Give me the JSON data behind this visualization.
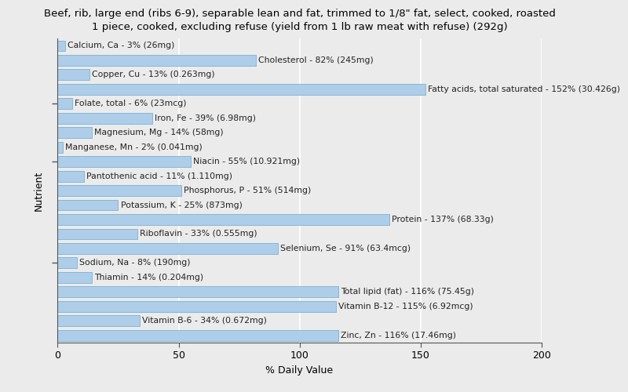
{
  "title": "Beef, rib, large end (ribs 6-9), separable lean and fat, trimmed to 1/8\" fat, select, cooked, roasted\n1 piece, cooked, excluding refuse (yield from 1 lb raw meat with refuse) (292g)",
  "xlabel": "% Daily Value",
  "ylabel": "Nutrient",
  "xlim": [
    0,
    200
  ],
  "xticks": [
    0,
    50,
    100,
    150,
    200
  ],
  "nutrients": [
    "Calcium, Ca - 3% (26mg)",
    "Cholesterol - 82% (245mg)",
    "Copper, Cu - 13% (0.263mg)",
    "Fatty acids, total saturated - 152% (30.426g)",
    "Folate, total - 6% (23mcg)",
    "Iron, Fe - 39% (6.98mg)",
    "Magnesium, Mg - 14% (58mg)",
    "Manganese, Mn - 2% (0.041mg)",
    "Niacin - 55% (10.921mg)",
    "Pantothenic acid - 11% (1.110mg)",
    "Phosphorus, P - 51% (514mg)",
    "Potassium, K - 25% (873mg)",
    "Protein - 137% (68.33g)",
    "Riboflavin - 33% (0.555mg)",
    "Selenium, Se - 91% (63.4mcg)",
    "Sodium, Na - 8% (190mg)",
    "Thiamin - 14% (0.204mg)",
    "Total lipid (fat) - 116% (75.45g)",
    "Vitamin B-12 - 115% (6.92mcg)",
    "Vitamin B-6 - 34% (0.672mg)",
    "Zinc, Zn - 116% (17.46mg)"
  ],
  "values": [
    3,
    82,
    13,
    152,
    6,
    39,
    14,
    2,
    55,
    11,
    51,
    25,
    137,
    33,
    91,
    8,
    14,
    116,
    115,
    34,
    116
  ],
  "bar_color": "#aecde8",
  "bar_edge_color": "#6aaad4",
  "background_color": "#ebebeb",
  "plot_background": "#ebebeb",
  "title_fontsize": 9.5,
  "label_fontsize": 7.8,
  "axis_label_fontsize": 9,
  "tick_fontsize": 9,
  "bar_height": 0.75,
  "grid_color": "white",
  "label_color": "#222222",
  "ytick_positions": [
    4,
    8,
    16
  ],
  "figsize": [
    8.0,
    5.0
  ],
  "dpi": 100
}
